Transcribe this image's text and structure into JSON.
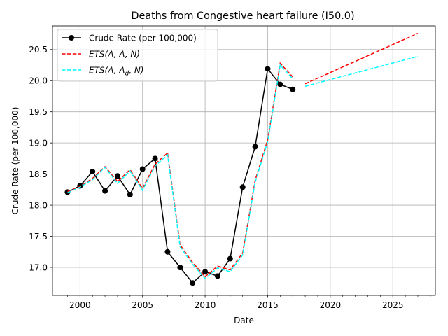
{
  "chart_data": {
    "type": "line",
    "title": "Deaths from Congestive heart failure (I50.0)",
    "xlabel": "Date",
    "ylabel": "Crude Rate (per 100,000)",
    "xlim": [
      1997.8,
      2028.4
    ],
    "ylim": [
      16.55,
      20.88
    ],
    "xticks": [
      2000,
      2005,
      2010,
      2015,
      2020,
      2025
    ],
    "yticks": [
      17.0,
      17.5,
      18.0,
      18.5,
      19.0,
      19.5,
      20.0,
      20.5
    ],
    "ytick_labels": [
      "17.0",
      "17.5",
      "18.0",
      "18.5",
      "19.0",
      "19.5",
      "20.0",
      "20.5"
    ],
    "grid": true,
    "legend_position": "top-left",
    "series": [
      {
        "name": "Crude Rate (per 100,000)",
        "color": "#000000",
        "style": "solid-markers",
        "x": [
          1999,
          2000,
          2001,
          2002,
          2003,
          2004,
          2005,
          2006,
          2007,
          2008,
          2009,
          2010,
          2011,
          2012,
          2013,
          2014,
          2015,
          2016,
          2017
        ],
        "y": [
          18.21,
          18.31,
          18.54,
          18.23,
          18.47,
          18.17,
          18.58,
          18.75,
          17.25,
          17.0,
          16.75,
          16.93,
          16.86,
          17.14,
          18.29,
          18.94,
          20.19,
          19.94,
          19.86
        ]
      },
      {
        "name_math": "ETS(A, A, N)",
        "color": "#ff0000",
        "style": "dashed",
        "fitted": {
          "x": [
            1999,
            2000,
            2001,
            2002,
            2003,
            2004,
            2005,
            2006,
            2007,
            2008,
            2009,
            2010,
            2011,
            2012,
            2013,
            2014,
            2015,
            2016,
            2017
          ],
          "y": [
            18.22,
            18.3,
            18.43,
            18.62,
            18.38,
            18.57,
            18.27,
            18.66,
            18.84,
            17.36,
            17.08,
            16.85,
            17.02,
            16.96,
            17.23,
            18.4,
            19.05,
            20.28,
            20.06
          ]
        },
        "forecast": {
          "x": [
            2018,
            2027
          ],
          "y": [
            19.95,
            20.76
          ]
        }
      },
      {
        "name_math": "ETS(A, A_d, N)",
        "color": "#00ffff",
        "style": "dashed",
        "fitted": {
          "x": [
            1999,
            2000,
            2001,
            2002,
            2003,
            2004,
            2005,
            2006,
            2007,
            2008,
            2009,
            2010,
            2011,
            2012,
            2013,
            2014,
            2015,
            2016,
            2017
          ],
          "y": [
            18.2,
            18.29,
            18.41,
            18.61,
            18.35,
            18.55,
            18.24,
            18.63,
            18.81,
            17.33,
            17.05,
            16.82,
            16.99,
            16.93,
            17.2,
            18.37,
            19.02,
            20.25,
            20.03
          ]
        },
        "forecast": {
          "x": [
            2018,
            2027
          ],
          "y": [
            19.91,
            20.39
          ]
        }
      }
    ]
  }
}
